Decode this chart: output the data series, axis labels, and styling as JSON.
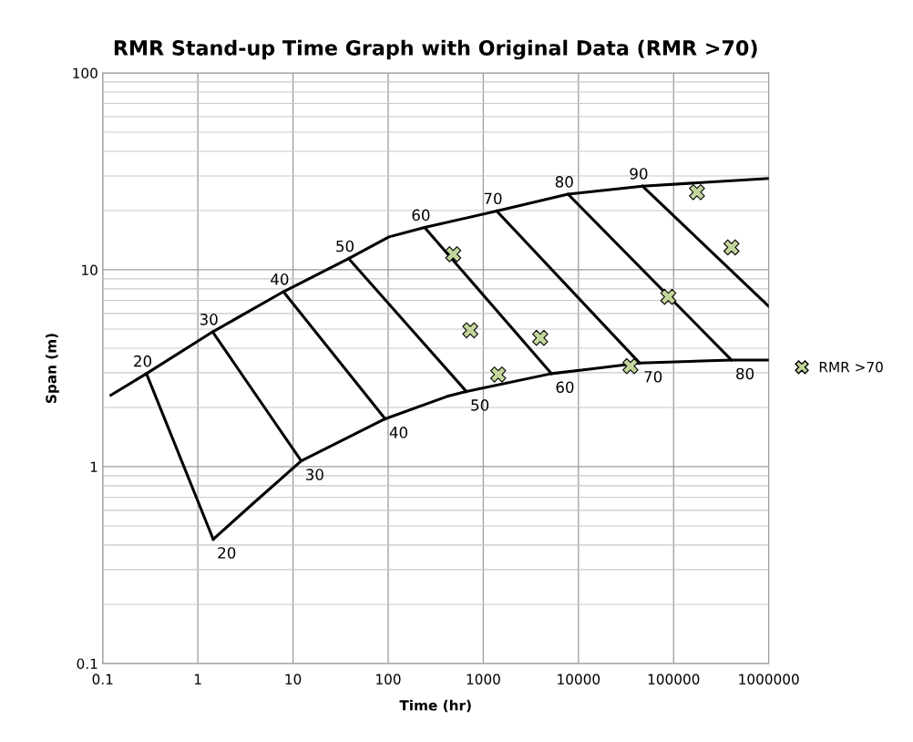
{
  "chart_data": {
    "type": "line",
    "title": "RMR Stand-up Time Graph with Original Data (RMR >70)",
    "xlabel": "Time (hr)",
    "ylabel": "Span (m)",
    "log": "xy",
    "grid": true,
    "legend": "right",
    "marker": "none",
    "line_style": "solid",
    "xlim": [
      0.1,
      1000000
    ],
    "xticks": [
      0.1,
      1,
      10,
      100,
      1000,
      10000,
      100000,
      1000000
    ],
    "ylim": [
      0.1,
      100
    ],
    "yticks": [
      0.1,
      1,
      10,
      100
    ],
    "series": [
      {
        "color": "#000000",
        "x": [
          0.122,
          0.288,
          1.43,
          7.93,
          38.5,
          102,
          242,
          1384,
          7780,
          47100,
          1000000
        ],
        "values": [
          2.31,
          2.97,
          4.84,
          7.74,
          11.4,
          14.7,
          16.4,
          19.9,
          24.2,
          26.6,
          29.1
        ]
      },
      {
        "color": "#000000",
        "x": [
          1.45,
          3.72,
          12.2,
          93.1,
          411,
          664,
          5200,
          13000,
          43900,
          406000,
          1000000
        ],
        "values": [
          0.428,
          0.644,
          1.07,
          1.75,
          2.27,
          2.41,
          2.97,
          3.13,
          3.36,
          3.48,
          3.48
        ]
      },
      {
        "color": "#000000",
        "x": [
          0.288,
          1.45
        ],
        "values": [
          2.97,
          0.428
        ]
      },
      {
        "color": "#000000",
        "x": [
          1.43,
          12.2
        ],
        "values": [
          4.84,
          1.07
        ]
      },
      {
        "color": "#000000",
        "x": [
          7.93,
          93.1
        ],
        "values": [
          7.74,
          1.75
        ]
      },
      {
        "color": "#000000",
        "x": [
          38.5,
          664
        ],
        "values": [
          11.4,
          2.41
        ]
      },
      {
        "color": "#000000",
        "x": [
          242,
          5200
        ],
        "values": [
          16.4,
          2.97
        ]
      },
      {
        "color": "#000000",
        "x": [
          1384,
          43900
        ],
        "values": [
          19.9,
          3.36
        ]
      },
      {
        "color": "#000000",
        "x": [
          7780,
          406000
        ],
        "values": [
          24.2,
          3.48
        ]
      },
      {
        "color": "#000000",
        "x": [
          47100,
          1000000
        ],
        "values": [
          26.6,
          6.53
        ]
      },
      {
        "type": "scatter",
        "name": "RMR >70",
        "color": "#c3d69b",
        "marker": "cross",
        "x": [
          176000,
          406000,
          88000,
          483,
          730,
          3960,
          1435,
          35200
        ],
        "values": [
          24.8,
          13.0,
          7.29,
          12.0,
          4.93,
          4.51,
          2.94,
          3.24
        ]
      }
    ],
    "annotations": [
      {
        "text": "20",
        "x": 0.288,
        "y": 2.97
      },
      {
        "text": "30",
        "x": 1.43,
        "y": 4.84
      },
      {
        "text": "40",
        "x": 7.93,
        "y": 7.74
      },
      {
        "text": "50",
        "x": 38.5,
        "y": 11.4
      },
      {
        "text": "60",
        "x": 242,
        "y": 16.4
      },
      {
        "text": "70",
        "x": 1384,
        "y": 19.9
      },
      {
        "text": "80",
        "x": 7780,
        "y": 24.2
      },
      {
        "text": "90",
        "x": 47100,
        "y": 26.6
      },
      {
        "text": "20",
        "x": 1.45,
        "y": 0.428
      },
      {
        "text": "30",
        "x": 12.2,
        "y": 1.07
      },
      {
        "text": "40",
        "x": 93.1,
        "y": 1.75
      },
      {
        "text": "50",
        "x": 664,
        "y": 2.41
      },
      {
        "text": "60",
        "x": 5200,
        "y": 2.97
      },
      {
        "text": "70",
        "x": 43900,
        "y": 3.36
      },
      {
        "text": "80",
        "x": 406000,
        "y": 3.48
      }
    ]
  }
}
